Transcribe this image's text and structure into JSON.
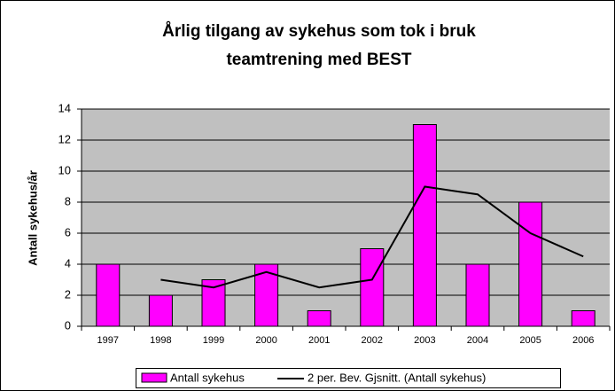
{
  "chart_data": {
    "type": "bar",
    "title": [
      "Årlig tilgang av sykehus som tok i bruk",
      "teamtrening med BEST"
    ],
    "y_label": "Antall sykehus/år",
    "categories": [
      "1997",
      "1998",
      "1999",
      "2000",
      "2001",
      "2002",
      "2003",
      "2004",
      "2005",
      "2006"
    ],
    "series": [
      {
        "name": "Antall sykehus",
        "color": "#ff00ff",
        "type": "bar",
        "values": [
          4,
          2,
          3,
          4,
          1,
          5,
          13,
          4,
          8,
          1
        ]
      },
      {
        "name": "2 per. Bev. Gjsnitt. (Antall sykehus)",
        "color": "#000000",
        "type": "line",
        "values": [
          null,
          3,
          2.5,
          3.5,
          2.5,
          3,
          9,
          8.5,
          6,
          4.5
        ]
      }
    ],
    "ylim": [
      0,
      14
    ],
    "yticks": [
      0,
      2,
      4,
      6,
      8,
      10,
      12,
      14
    ],
    "grid": true,
    "legend": "bottom"
  }
}
